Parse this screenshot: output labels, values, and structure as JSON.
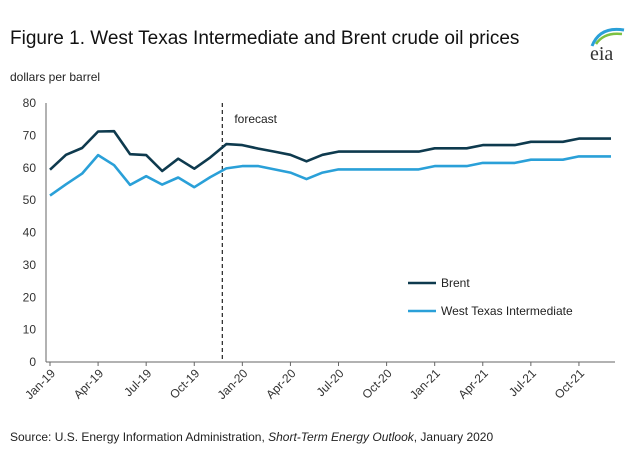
{
  "title": "Figure 1. West Texas Intermediate and Brent crude oil prices",
  "units": "dollars per barrel",
  "logo_text": "eia",
  "source": {
    "prefix": "Source: U.S. Energy Information Administration, ",
    "publication": "Short-Term Energy Outlook",
    "suffix": ", January 2020"
  },
  "colors": {
    "brent": "#0e3a4e",
    "wti": "#2aa0d8",
    "forecast_line": "#222222"
  },
  "chart_data": {
    "type": "line",
    "xlabel": "",
    "ylabel": "",
    "ylim": [
      0,
      80
    ],
    "yticks": [
      0,
      10,
      20,
      30,
      40,
      50,
      60,
      70,
      80
    ],
    "grid": false,
    "legend": "right",
    "x": [
      "Jan-19",
      "Feb-19",
      "Mar-19",
      "Apr-19",
      "May-19",
      "Jun-19",
      "Jul-19",
      "Aug-19",
      "Sep-19",
      "Oct-19",
      "Nov-19",
      "Dec-19",
      "Jan-20",
      "Feb-20",
      "Mar-20",
      "Apr-20",
      "May-20",
      "Jun-20",
      "Jul-20",
      "Aug-20",
      "Sep-20",
      "Oct-20",
      "Nov-20",
      "Dec-20",
      "Jan-21",
      "Feb-21",
      "Mar-21",
      "Apr-21",
      "May-21",
      "Jun-21",
      "Jul-21",
      "Aug-21",
      "Sep-21",
      "Oct-21",
      "Nov-21",
      "Dec-21"
    ],
    "xtick_labels": [
      "Jan-19",
      "Apr-19",
      "Jul-19",
      "Oct-19",
      "Jan-20",
      "Apr-20",
      "Jul-20",
      "Oct-20",
      "Jan-21",
      "Apr-21",
      "Jul-21",
      "Oct-21"
    ],
    "forecast_start": "Dec-19",
    "forecast_label": "forecast",
    "series": [
      {
        "name": "Brent",
        "values": [
          59.4,
          64.0,
          66.1,
          71.2,
          71.3,
          64.2,
          63.9,
          59.0,
          62.8,
          59.7,
          63.2,
          67.3,
          67.0,
          65.9,
          65.0,
          64.0,
          62.0,
          64.0,
          65.0,
          65.0,
          65.0,
          65.0,
          65.0,
          65.0,
          66.0,
          66.0,
          66.0,
          67.0,
          67.0,
          67.0,
          68.0,
          68.0,
          68.0,
          69.0,
          69.0,
          69.0
        ]
      },
      {
        "name": "West Texas Intermediate",
        "values": [
          51.4,
          54.9,
          58.2,
          63.9,
          60.8,
          54.7,
          57.4,
          54.8,
          57.0,
          54.0,
          57.1,
          59.8,
          60.5,
          60.5,
          59.5,
          58.5,
          56.5,
          58.5,
          59.5,
          59.5,
          59.5,
          59.5,
          59.5,
          59.5,
          60.5,
          60.5,
          60.5,
          61.5,
          61.5,
          61.5,
          62.5,
          62.5,
          62.5,
          63.5,
          63.5,
          63.5
        ]
      }
    ]
  }
}
